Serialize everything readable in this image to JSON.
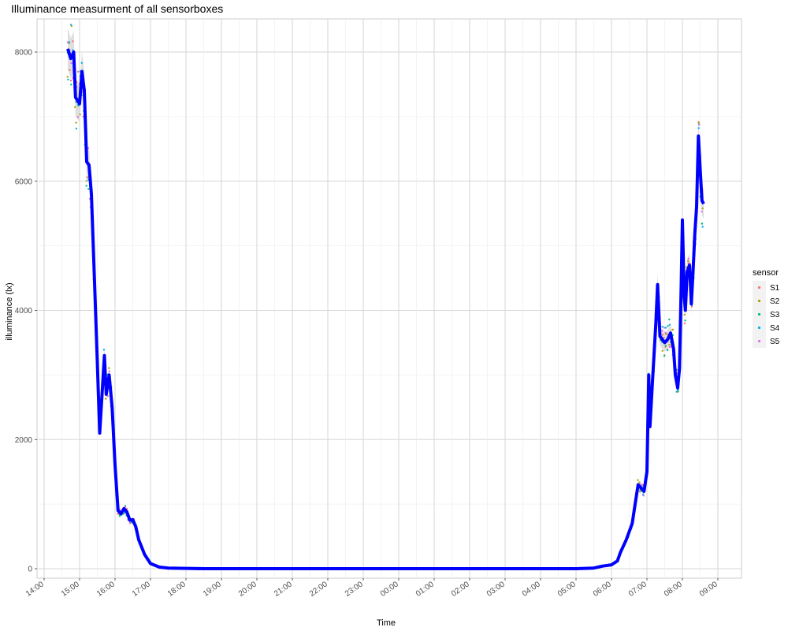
{
  "chart_data": {
    "type": "scatter",
    "title": "Illuminance measurment of all sensorboxes",
    "xlabel": "Time",
    "ylabel": "illuminance (lx)",
    "x_range": [
      "14:00",
      "09:00"
    ],
    "ylim": [
      -400,
      8400
    ],
    "y_ticks": [
      0,
      2000,
      4000,
      6000,
      8000
    ],
    "x_ticks": [
      "14:00",
      "15:00",
      "16:00",
      "17:00",
      "18:00",
      "19:00",
      "20:00",
      "21:00",
      "22:00",
      "23:00",
      "00:00",
      "01:00",
      "02:00",
      "03:00",
      "04:00",
      "05:00",
      "06:00",
      "07:00",
      "08:00",
      "09:00"
    ],
    "grid": true,
    "legend": {
      "title": "sensor",
      "position": "right"
    },
    "series": [
      {
        "name": "S1",
        "color": "#F8766D"
      },
      {
        "name": "S2",
        "color": "#A3A500"
      },
      {
        "name": "S3",
        "color": "#00BF7D"
      },
      {
        "name": "S4",
        "color": "#00B0F6"
      },
      {
        "name": "S5",
        "color": "#E76BF3"
      }
    ],
    "smooth_line": {
      "color": "#0000FF",
      "band_color": "#d9d9d9"
    },
    "profile": [
      [
        "14:40",
        8050
      ],
      [
        "14:45",
        7900
      ],
      [
        "14:50",
        8000
      ],
      [
        "14:53",
        7300
      ],
      [
        "15:00",
        7200
      ],
      [
        "15:04",
        7700
      ],
      [
        "15:08",
        7400
      ],
      [
        "15:12",
        6300
      ],
      [
        "15:16",
        6250
      ],
      [
        "15:20",
        5800
      ],
      [
        "15:25",
        4500
      ],
      [
        "15:30",
        3200
      ],
      [
        "15:34",
        2100
      ],
      [
        "15:38",
        2700
      ],
      [
        "15:42",
        3300
      ],
      [
        "15:45",
        2700
      ],
      [
        "15:50",
        3000
      ],
      [
        "15:55",
        2500
      ],
      [
        "16:00",
        1600
      ],
      [
        "16:05",
        900
      ],
      [
        "16:10",
        850
      ],
      [
        "16:15",
        930
      ],
      [
        "16:20",
        880
      ],
      [
        "16:25",
        750
      ],
      [
        "16:30",
        760
      ],
      [
        "16:35",
        650
      ],
      [
        "16:40",
        450
      ],
      [
        "16:50",
        220
      ],
      [
        "17:00",
        80
      ],
      [
        "17:15",
        25
      ],
      [
        "17:30",
        10
      ],
      [
        "18:00",
        5
      ],
      [
        "18:30",
        0
      ],
      [
        "05:00",
        0
      ],
      [
        "05:30",
        10
      ],
      [
        "05:45",
        40
      ],
      [
        "06:00",
        60
      ],
      [
        "06:10",
        120
      ],
      [
        "06:15",
        250
      ],
      [
        "06:25",
        450
      ],
      [
        "06:35",
        700
      ],
      [
        "06:40",
        1000
      ],
      [
        "06:45",
        1300
      ],
      [
        "06:50",
        1250
      ],
      [
        "06:55",
        1200
      ],
      [
        "07:00",
        1500
      ],
      [
        "07:03",
        3000
      ],
      [
        "07:05",
        2200
      ],
      [
        "07:10",
        3000
      ],
      [
        "07:15",
        3800
      ],
      [
        "07:18",
        4400
      ],
      [
        "07:22",
        3600
      ],
      [
        "07:30",
        3500
      ],
      [
        "07:35",
        3550
      ],
      [
        "07:40",
        3650
      ],
      [
        "07:45",
        3400
      ],
      [
        "07:48",
        3000
      ],
      [
        "07:52",
        2800
      ],
      [
        "07:55",
        3100
      ],
      [
        "07:58",
        4400
      ],
      [
        "08:00",
        5400
      ],
      [
        "08:03",
        4200
      ],
      [
        "08:05",
        4000
      ],
      [
        "08:08",
        4600
      ],
      [
        "08:12",
        4700
      ],
      [
        "08:15",
        4100
      ],
      [
        "08:18",
        4600
      ],
      [
        "08:21",
        5200
      ],
      [
        "08:24",
        5600
      ],
      [
        "08:27",
        6700
      ],
      [
        "08:30",
        6200
      ],
      [
        "08:33",
        5700
      ],
      [
        "08:36",
        5650
      ]
    ]
  }
}
